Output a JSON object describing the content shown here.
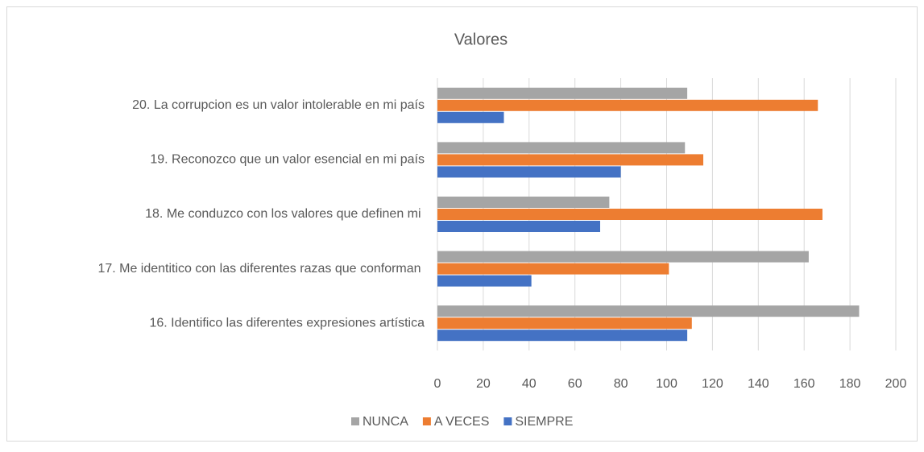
{
  "chart_data": {
    "type": "hbar",
    "title": "Valores",
    "categories": [
      "20. La corrupcion es un valor intolerable en mi país",
      "19. Reconozco que un valor esencial en mi país",
      "18. Me conduzco con los valores que definen mi ",
      "17. Me identitico con las diferentes razas que conforman ",
      "16. Identifico las diferentes expresiones artística"
    ],
    "series": [
      {
        "name": "NUNCA",
        "color": "#a5a5a5",
        "values": [
          109,
          108,
          75,
          162,
          184
        ]
      },
      {
        "name": "A VECES",
        "color": "#ed7d31",
        "values": [
          166,
          116,
          168,
          101,
          111
        ]
      },
      {
        "name": "SIEMPRE",
        "color": "#4472c4",
        "values": [
          29,
          80,
          71,
          41,
          109
        ]
      }
    ],
    "xlim": [
      0,
      200
    ],
    "xticks": [
      0,
      20,
      40,
      60,
      80,
      100,
      120,
      140,
      160,
      180,
      200
    ],
    "grid": true,
    "legend": "bottom"
  }
}
